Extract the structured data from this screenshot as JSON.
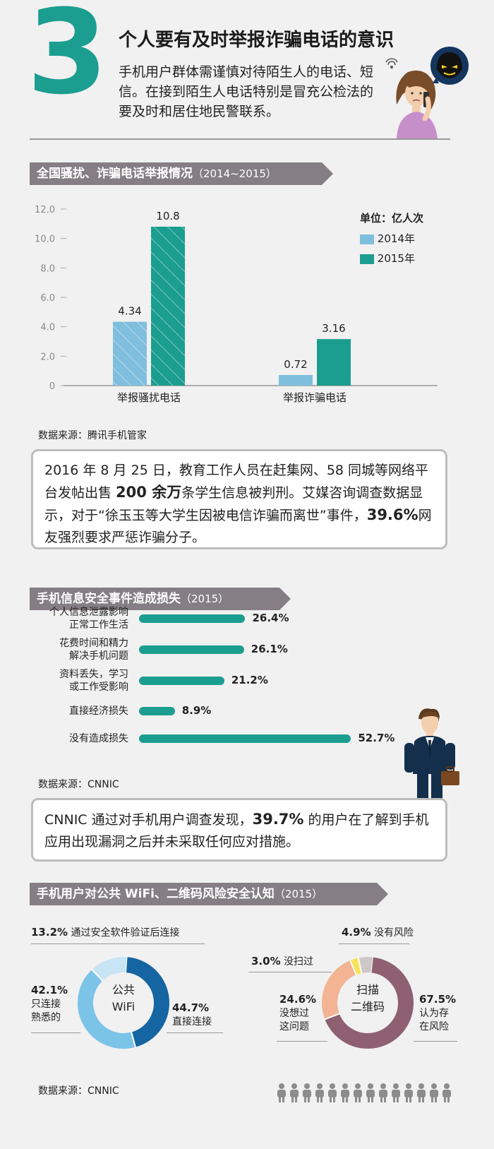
{
  "header": {
    "number": "3",
    "title": "个人要有及时举报诈骗电话的意识",
    "intro": "手机用户群体需谨慎对待陌生人的电话、短信。在接到陌生人电话特别是冒充公检法的要及时和居住地民警联系。"
  },
  "section1": {
    "title": "全国骚扰、诈骗电话举报情况",
    "year": "（2014~2015）",
    "unit_label": "单位：亿人次",
    "source": "数据来源：腾讯手机管家"
  },
  "callout1": {
    "part1": "2016 年 8 月 25 日，教育工作人员在赶集网、58 同城等网络平台发帖出售 ",
    "bold1": "200 余万",
    "part2": "条学生信息被判刑。艾媒咨询调查数据显示，对于“徐玉玉等大学生因被电信诈骗而离世”事件，",
    "bold2": "39.6%",
    "part3": "网友强烈要求严惩诈骗分子。"
  },
  "section2": {
    "title": "手机信息安全事件造成损失",
    "year": "（2015）",
    "source": "数据来源：CNNIC"
  },
  "callout2": {
    "part1": "CNNIC 通过对手机用户调查发现，",
    "bold1": "39.7%",
    "part2": " 的用户在了解到手机应用出现漏洞之后并未采取任何应对措施。"
  },
  "section3": {
    "title": "手机用户对公共 WiFi、二维码风险安全认知",
    "year": "（2015）",
    "source": "数据来源：CNNIC"
  },
  "chart_data": [
    {
      "type": "bar",
      "title": "全国骚扰、诈骗电话举报情况（2014~2015）",
      "categories": [
        "举报骚扰电话",
        "举报诈骗电话"
      ],
      "series": [
        {
          "name": "2014年",
          "values": [
            4.34,
            0.72
          ],
          "labels": [
            "4.34",
            "0.72"
          ],
          "color": "#7fbfdd"
        },
        {
          "name": "2015年",
          "values": [
            10.8,
            3.16
          ],
          "labels": [
            "10.8",
            "3.16"
          ],
          "color": "#1b9e8f"
        }
      ],
      "yticks": [
        "0",
        "2.0",
        "4.0",
        "6.0",
        "8.0",
        "10.0",
        "12.0"
      ],
      "ylim": [
        0,
        12
      ],
      "unit": "单位：亿人次",
      "legend_position": "top-right"
    },
    {
      "type": "bar",
      "orientation": "horizontal",
      "title": "手机信息安全事件造成损失（2015）",
      "categories": [
        [
          "个人信息泄露影响",
          "正常工作生活"
        ],
        [
          "花费时间和精力",
          "解决手机问题"
        ],
        [
          "资料丢失，学习",
          "或工作受影响"
        ],
        [
          "直接经济损失"
        ],
        [
          "没有造成损失"
        ]
      ],
      "values": [
        26.4,
        26.1,
        21.2,
        8.9,
        52.7
      ],
      "labels": [
        "26.4%",
        "26.1%",
        "21.2%",
        "8.9%",
        "52.7%"
      ],
      "color": "#1b9e8f"
    },
    {
      "type": "pie",
      "center_label": [
        "公共",
        "WiFi"
      ],
      "slices": [
        {
          "pct": "44.7%",
          "text": [
            "直接连接"
          ],
          "value": 44.7,
          "color": "#1565a3"
        },
        {
          "pct": "42.1%",
          "text": [
            "只连接",
            "熟悉的"
          ],
          "value": 42.1,
          "color": "#7cc3e8"
        },
        {
          "pct": "13.2%",
          "text": [
            "通过安全软件验证后连接"
          ],
          "value": 13.2,
          "color": "#c7e5f4"
        }
      ]
    },
    {
      "type": "pie",
      "center_label": [
        "扫描",
        "二维码"
      ],
      "slices": [
        {
          "pct": "67.5%",
          "text": [
            "认为存",
            "在风险"
          ],
          "value": 67.5,
          "color": "#8e6071"
        },
        {
          "pct": "24.6%",
          "text": [
            "没想过",
            "这问题"
          ],
          "value": 24.6,
          "color": "#f2b493"
        },
        {
          "pct": "3.0%",
          "text": [
            "没扫过"
          ],
          "value": 3.0,
          "color": "#f7e35a"
        },
        {
          "pct": "4.9%",
          "text": [
            "没有风险"
          ],
          "value": 4.9,
          "color": "#cdc7c7"
        }
      ]
    }
  ],
  "icons": [
    "woman-on-phone-illustration",
    "masked-caller-icon",
    "businessman-illustration",
    "people-row-icon"
  ]
}
